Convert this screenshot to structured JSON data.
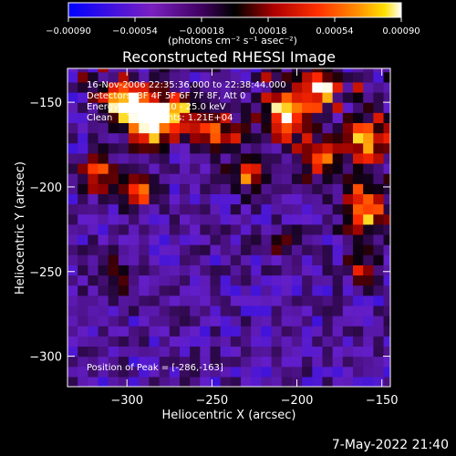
{
  "chart_data": {
    "type": "heatmap",
    "title": "Reconstructed RHESSI Image",
    "xlabel": "Heliocentric X (arcsec)",
    "ylabel": "Heliocentric Y (arcsec)",
    "xlim": [
      -335,
      -145
    ],
    "ylim": [
      -318,
      -130
    ],
    "x_ticks": [
      -300,
      -250,
      -200,
      -150
    ],
    "y_ticks": [
      -300,
      -250,
      -200,
      -150
    ],
    "x_tick_labels": [
      "−300",
      "−250",
      "−200",
      "−150"
    ],
    "y_tick_labels": [
      "−300",
      "−250",
      "−200",
      "−150"
    ],
    "colorbar": {
      "range": [
        -0.0009,
        0.0009
      ],
      "ticks": [
        -0.0009,
        -0.00054,
        -0.00018,
        0.00018,
        0.00054,
        0.0009
      ],
      "tick_labels": [
        "−0.00090",
        "−0.00054",
        "−0.00018",
        "0.00018",
        "0.00054",
        "0.00090"
      ],
      "unit_label": "(photons cm⁻² s⁻¹ asec⁻²)",
      "colormap": [
        "#0000ff",
        "#5a1ad0",
        "#7a2ab0",
        "#000000",
        "#b00000",
        "#ff2000",
        "#ff8000",
        "#ffd000",
        "#ffffff"
      ]
    },
    "info_lines": [
      "16-Nov-2006 22:35:36.000 to 22:38:44.000",
      "Detectors: 3F 4F 5F 6F 7F 8F, Att 0",
      "Energy Range: 12.0 - 25.0 keV",
      "Clean     Total counts: 1.21E+04"
    ],
    "peak_label": "Position of Peak = [-286,-163]",
    "peak": [
      -286,
      -163
    ],
    "bright_regions": [
      {
        "x": -305,
        "y": -150,
        "w": 12,
        "h": 12,
        "level": 0.95
      },
      {
        "x": -290,
        "y": -165,
        "w": 14,
        "h": 14,
        "level": 1.0
      },
      {
        "x": -275,
        "y": -160,
        "w": 10,
        "h": 12,
        "level": 0.7
      },
      {
        "x": -250,
        "y": -170,
        "w": 12,
        "h": 12,
        "level": 0.75
      },
      {
        "x": -320,
        "y": -195,
        "w": 10,
        "h": 10,
        "level": 0.6
      },
      {
        "x": -296,
        "y": -205,
        "w": 10,
        "h": 10,
        "level": 0.55
      },
      {
        "x": -230,
        "y": -195,
        "w": 12,
        "h": 12,
        "level": 0.55
      },
      {
        "x": -210,
        "y": -160,
        "w": 14,
        "h": 14,
        "level": 0.95
      },
      {
        "x": -190,
        "y": -145,
        "w": 12,
        "h": 10,
        "level": 0.85
      },
      {
        "x": -190,
        "y": -185,
        "w": 12,
        "h": 12,
        "level": 0.65
      },
      {
        "x": -160,
        "y": -175,
        "w": 12,
        "h": 14,
        "level": 0.85
      },
      {
        "x": -162,
        "y": -215,
        "w": 14,
        "h": 16,
        "level": 0.85
      },
      {
        "x": -165,
        "y": -250,
        "w": 10,
        "h": 10,
        "level": 0.5
      },
      {
        "x": -310,
        "y": -255,
        "w": 14,
        "h": 10,
        "level": 0.35
      },
      {
        "x": -212,
        "y": -235,
        "w": 10,
        "h": 10,
        "level": 0.3
      }
    ]
  },
  "footer": {
    "date": "7-May-2022 21:40"
  }
}
